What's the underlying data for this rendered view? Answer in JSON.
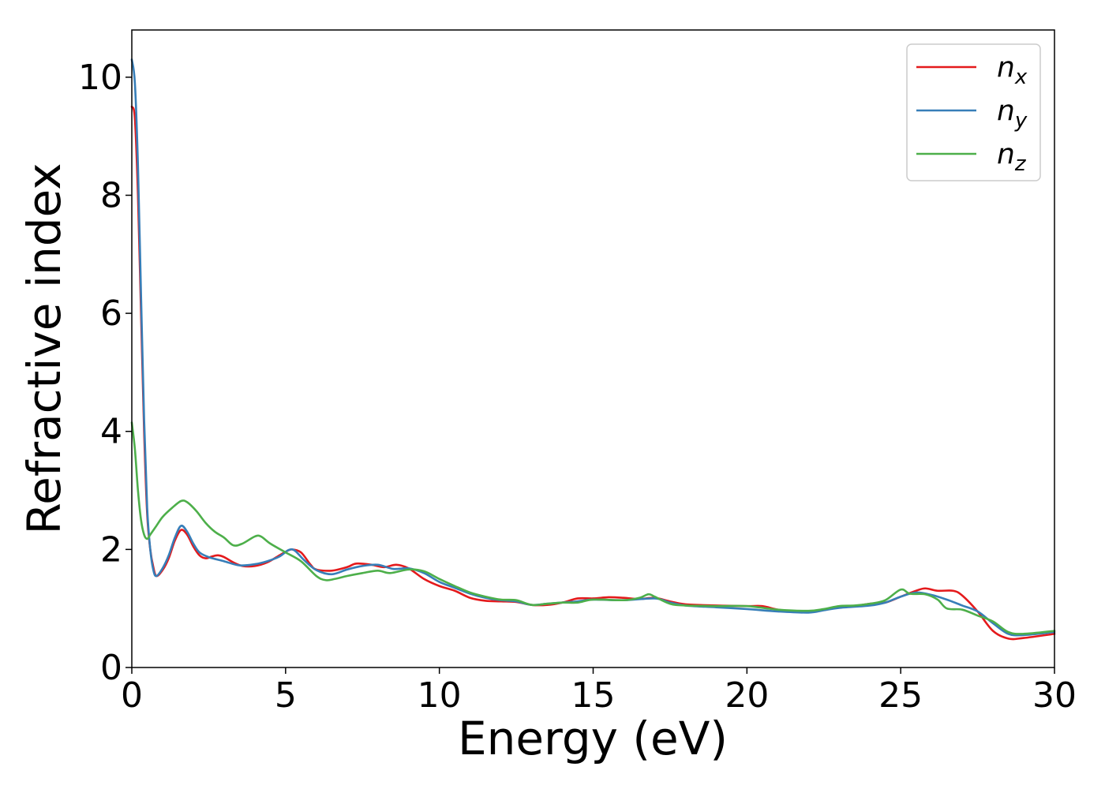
{
  "chart_data": {
    "type": "line",
    "title": "",
    "xlabel": "Energy (eV)",
    "ylabel": "Refractive index",
    "xlim": [
      0,
      30
    ],
    "ylim": [
      0,
      10.8
    ],
    "xticks": [
      0,
      5,
      10,
      15,
      20,
      25,
      30
    ],
    "yticks": [
      0,
      2,
      4,
      6,
      8,
      10
    ],
    "grid": false,
    "legend_position": "top-right",
    "series": [
      {
        "name": "n_x",
        "symbol": "n",
        "subscript": "x",
        "color": "#e41a1c",
        "points": [
          [
            0,
            9.5
          ],
          [
            0.1,
            9.3
          ],
          [
            0.2,
            8.0
          ],
          [
            0.3,
            6.0
          ],
          [
            0.4,
            4.0
          ],
          [
            0.5,
            2.6
          ],
          [
            0.6,
            2.0
          ],
          [
            0.7,
            1.7
          ],
          [
            0.8,
            1.55
          ],
          [
            1.0,
            1.65
          ],
          [
            1.2,
            1.85
          ],
          [
            1.4,
            2.15
          ],
          [
            1.6,
            2.33
          ],
          [
            1.8,
            2.25
          ],
          [
            2.0,
            2.05
          ],
          [
            2.2,
            1.9
          ],
          [
            2.4,
            1.85
          ],
          [
            2.6,
            1.88
          ],
          [
            2.8,
            1.9
          ],
          [
            3.0,
            1.87
          ],
          [
            3.3,
            1.78
          ],
          [
            3.6,
            1.72
          ],
          [
            4.0,
            1.72
          ],
          [
            4.4,
            1.78
          ],
          [
            4.8,
            1.9
          ],
          [
            5.0,
            1.96
          ],
          [
            5.2,
            2.0
          ],
          [
            5.5,
            1.95
          ],
          [
            5.8,
            1.75
          ],
          [
            6.0,
            1.66
          ],
          [
            6.5,
            1.64
          ],
          [
            7.0,
            1.7
          ],
          [
            7.3,
            1.76
          ],
          [
            7.8,
            1.74
          ],
          [
            8.2,
            1.7
          ],
          [
            8.6,
            1.74
          ],
          [
            9.0,
            1.68
          ],
          [
            9.5,
            1.5
          ],
          [
            10.0,
            1.38
          ],
          [
            10.5,
            1.3
          ],
          [
            11.0,
            1.18
          ],
          [
            11.5,
            1.13
          ],
          [
            12.0,
            1.12
          ],
          [
            12.5,
            1.11
          ],
          [
            13.0,
            1.06
          ],
          [
            13.5,
            1.06
          ],
          [
            14.0,
            1.1
          ],
          [
            14.5,
            1.17
          ],
          [
            15.0,
            1.17
          ],
          [
            15.5,
            1.19
          ],
          [
            16.0,
            1.18
          ],
          [
            16.5,
            1.16
          ],
          [
            17.0,
            1.18
          ],
          [
            17.5,
            1.12
          ],
          [
            18.0,
            1.07
          ],
          [
            19.0,
            1.05
          ],
          [
            20.0,
            1.04
          ],
          [
            20.5,
            1.04
          ],
          [
            21.0,
            0.98
          ],
          [
            21.5,
            0.95
          ],
          [
            22.0,
            0.95
          ],
          [
            22.5,
            0.98
          ],
          [
            23.0,
            1.02
          ],
          [
            23.5,
            1.04
          ],
          [
            24.0,
            1.08
          ],
          [
            24.5,
            1.1
          ],
          [
            25.0,
            1.2
          ],
          [
            25.5,
            1.3
          ],
          [
            25.8,
            1.34
          ],
          [
            26.2,
            1.3
          ],
          [
            26.7,
            1.3
          ],
          [
            27.0,
            1.22
          ],
          [
            27.5,
            0.95
          ],
          [
            28.0,
            0.62
          ],
          [
            28.5,
            0.49
          ],
          [
            29.0,
            0.5
          ],
          [
            30.0,
            0.57
          ]
        ]
      },
      {
        "name": "n_y",
        "symbol": "n",
        "subscript": "y",
        "color": "#377eb8",
        "points": [
          [
            0,
            10.3
          ],
          [
            0.1,
            9.9
          ],
          [
            0.2,
            8.5
          ],
          [
            0.3,
            6.3
          ],
          [
            0.4,
            4.2
          ],
          [
            0.5,
            2.7
          ],
          [
            0.6,
            2.0
          ],
          [
            0.7,
            1.65
          ],
          [
            0.8,
            1.55
          ],
          [
            1.0,
            1.68
          ],
          [
            1.2,
            1.9
          ],
          [
            1.4,
            2.2
          ],
          [
            1.6,
            2.4
          ],
          [
            1.8,
            2.3
          ],
          [
            2.0,
            2.1
          ],
          [
            2.2,
            1.95
          ],
          [
            2.5,
            1.87
          ],
          [
            3.0,
            1.8
          ],
          [
            3.5,
            1.73
          ],
          [
            4.0,
            1.75
          ],
          [
            4.4,
            1.8
          ],
          [
            4.8,
            1.88
          ],
          [
            5.1,
            1.99
          ],
          [
            5.3,
            1.98
          ],
          [
            5.6,
            1.82
          ],
          [
            6.0,
            1.65
          ],
          [
            6.5,
            1.58
          ],
          [
            7.0,
            1.66
          ],
          [
            7.5,
            1.72
          ],
          [
            8.0,
            1.74
          ],
          [
            8.5,
            1.67
          ],
          [
            9.0,
            1.68
          ],
          [
            9.5,
            1.6
          ],
          [
            10.0,
            1.45
          ],
          [
            10.5,
            1.35
          ],
          [
            11.0,
            1.25
          ],
          [
            11.5,
            1.18
          ],
          [
            12.0,
            1.14
          ],
          [
            12.5,
            1.12
          ],
          [
            13.0,
            1.06
          ],
          [
            13.5,
            1.08
          ],
          [
            14.0,
            1.1
          ],
          [
            14.5,
            1.12
          ],
          [
            15.0,
            1.15
          ],
          [
            16.0,
            1.14
          ],
          [
            17.0,
            1.17
          ],
          [
            17.5,
            1.1
          ],
          [
            18.0,
            1.05
          ],
          [
            19.0,
            1.02
          ],
          [
            20.0,
            0.99
          ],
          [
            21.0,
            0.95
          ],
          [
            22.0,
            0.93
          ],
          [
            22.5,
            0.97
          ],
          [
            23.0,
            1.01
          ],
          [
            24.0,
            1.05
          ],
          [
            24.5,
            1.1
          ],
          [
            25.0,
            1.2
          ],
          [
            25.5,
            1.27
          ],
          [
            26.0,
            1.23
          ],
          [
            26.5,
            1.15
          ],
          [
            27.0,
            1.05
          ],
          [
            27.5,
            0.95
          ],
          [
            28.0,
            0.75
          ],
          [
            28.5,
            0.57
          ],
          [
            29.0,
            0.55
          ],
          [
            30.0,
            0.6
          ]
        ]
      },
      {
        "name": "n_z",
        "symbol": "n",
        "subscript": "z",
        "color": "#4daf4a",
        "points": [
          [
            0,
            4.15
          ],
          [
            0.1,
            3.7
          ],
          [
            0.2,
            3.0
          ],
          [
            0.3,
            2.5
          ],
          [
            0.4,
            2.25
          ],
          [
            0.5,
            2.18
          ],
          [
            0.6,
            2.25
          ],
          [
            0.8,
            2.4
          ],
          [
            1.0,
            2.55
          ],
          [
            1.3,
            2.7
          ],
          [
            1.6,
            2.82
          ],
          [
            1.8,
            2.8
          ],
          [
            2.1,
            2.65
          ],
          [
            2.4,
            2.45
          ],
          [
            2.7,
            2.3
          ],
          [
            3.0,
            2.2
          ],
          [
            3.3,
            2.07
          ],
          [
            3.6,
            2.1
          ],
          [
            4.0,
            2.22
          ],
          [
            4.2,
            2.22
          ],
          [
            4.5,
            2.1
          ],
          [
            5.0,
            1.95
          ],
          [
            5.5,
            1.8
          ],
          [
            6.0,
            1.55
          ],
          [
            6.3,
            1.48
          ],
          [
            6.6,
            1.5
          ],
          [
            7.0,
            1.55
          ],
          [
            7.5,
            1.6
          ],
          [
            8.0,
            1.64
          ],
          [
            8.4,
            1.6
          ],
          [
            9.0,
            1.66
          ],
          [
            9.5,
            1.63
          ],
          [
            10.0,
            1.5
          ],
          [
            10.5,
            1.38
          ],
          [
            11.0,
            1.27
          ],
          [
            11.5,
            1.2
          ],
          [
            12.0,
            1.15
          ],
          [
            12.5,
            1.14
          ],
          [
            13.0,
            1.06
          ],
          [
            13.5,
            1.08
          ],
          [
            14.0,
            1.1
          ],
          [
            14.5,
            1.1
          ],
          [
            15.0,
            1.15
          ],
          [
            16.0,
            1.14
          ],
          [
            16.5,
            1.18
          ],
          [
            16.8,
            1.24
          ],
          [
            17.0,
            1.2
          ],
          [
            17.5,
            1.08
          ],
          [
            18.0,
            1.05
          ],
          [
            19.0,
            1.04
          ],
          [
            20.0,
            1.04
          ],
          [
            21.0,
            0.98
          ],
          [
            22.0,
            0.96
          ],
          [
            22.5,
            0.99
          ],
          [
            23.0,
            1.04
          ],
          [
            23.5,
            1.05
          ],
          [
            24.0,
            1.08
          ],
          [
            24.5,
            1.14
          ],
          [
            25.0,
            1.32
          ],
          [
            25.3,
            1.25
          ],
          [
            25.8,
            1.24
          ],
          [
            26.2,
            1.15
          ],
          [
            26.5,
            1.0
          ],
          [
            27.0,
            0.98
          ],
          [
            27.5,
            0.88
          ],
          [
            28.0,
            0.78
          ],
          [
            28.5,
            0.6
          ],
          [
            29.0,
            0.57
          ],
          [
            30.0,
            0.62
          ]
        ]
      }
    ]
  }
}
